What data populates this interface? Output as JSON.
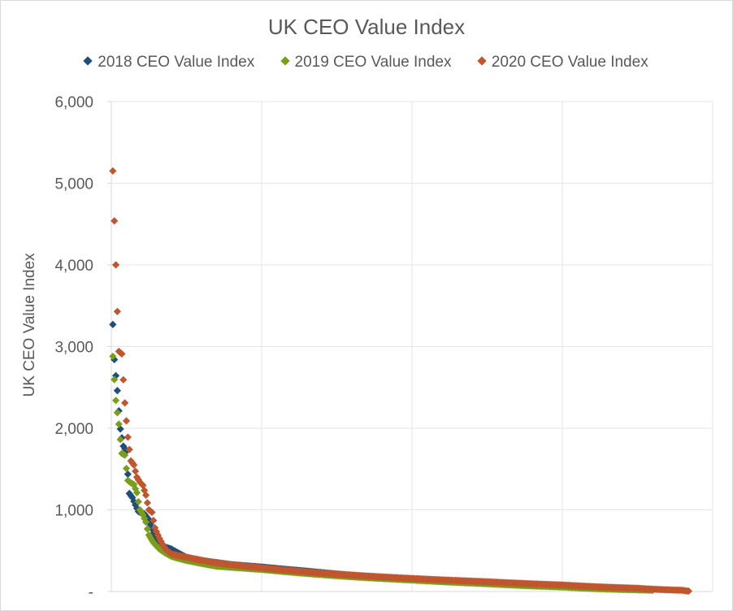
{
  "chart_data": {
    "type": "scatter",
    "title": "UK CEO Value Index",
    "xlabel": "",
    "ylabel": "UK CEO Value Index",
    "xlim": [
      0,
      400
    ],
    "ylim": [
      0,
      6000
    ],
    "x_gridlines": [
      100,
      200,
      300,
      400
    ],
    "grid": true,
    "legend_position": "top",
    "y_ticks": [
      {
        "value": 0,
        "label": "-"
      },
      {
        "value": 1000,
        "label": "1,000"
      },
      {
        "value": 2000,
        "label": "2,000"
      },
      {
        "value": 3000,
        "label": "3,000"
      },
      {
        "value": 4000,
        "label": "4,000"
      },
      {
        "value": 5000,
        "label": "5,000"
      },
      {
        "value": 6000,
        "label": "6,000"
      }
    ],
    "marker": "diamond",
    "series": [
      {
        "name": "2018 CEO Value Index",
        "color": "#1f4e79",
        "anchors": [
          [
            1,
            3270
          ],
          [
            2,
            2840
          ],
          [
            4,
            2460
          ],
          [
            6,
            1990
          ],
          [
            8,
            1780
          ],
          [
            10,
            1720
          ],
          [
            12,
            1200
          ],
          [
            14,
            1150
          ],
          [
            16,
            1060
          ],
          [
            18,
            980
          ],
          [
            20,
            960
          ],
          [
            22,
            950
          ],
          [
            25,
            880
          ],
          [
            30,
            620
          ],
          [
            35,
            550
          ],
          [
            40,
            520
          ],
          [
            50,
            420
          ],
          [
            60,
            380
          ],
          [
            80,
            330
          ],
          [
            100,
            300
          ],
          [
            130,
            250
          ],
          [
            160,
            200
          ],
          [
            200,
            155
          ],
          [
            250,
            110
          ],
          [
            300,
            75
          ],
          [
            350,
            35
          ],
          [
            360,
            20
          ]
        ],
        "n_points": 360
      },
      {
        "name": "2019 CEO Value Index",
        "color": "#7a9e1a",
        "anchors": [
          [
            1,
            2880
          ],
          [
            3,
            2340
          ],
          [
            5,
            2050
          ],
          [
            7,
            1690
          ],
          [
            9,
            1670
          ],
          [
            11,
            1360
          ],
          [
            13,
            1330
          ],
          [
            15,
            1310
          ],
          [
            17,
            1210
          ],
          [
            19,
            1000
          ],
          [
            21,
            940
          ],
          [
            23,
            850
          ],
          [
            25,
            690
          ],
          [
            28,
            600
          ],
          [
            32,
            520
          ],
          [
            36,
            470
          ],
          [
            40,
            430
          ],
          [
            50,
            380
          ],
          [
            70,
            310
          ],
          [
            100,
            270
          ],
          [
            130,
            220
          ],
          [
            160,
            180
          ],
          [
            200,
            140
          ],
          [
            250,
            95
          ],
          [
            300,
            55
          ],
          [
            350,
            20
          ],
          [
            360,
            15
          ]
        ],
        "n_points": 360
      },
      {
        "name": "2020 CEO Value Index",
        "color": "#c0562e",
        "anchors": [
          [
            1,
            5150
          ],
          [
            3,
            4000
          ],
          [
            5,
            2940
          ],
          [
            7,
            2910
          ],
          [
            9,
            2310
          ],
          [
            11,
            1890
          ],
          [
            13,
            1600
          ],
          [
            15,
            1550
          ],
          [
            17,
            1400
          ],
          [
            19,
            1340
          ],
          [
            21,
            1300
          ],
          [
            23,
            1180
          ],
          [
            25,
            1000
          ],
          [
            27,
            970
          ],
          [
            29,
            780
          ],
          [
            32,
            650
          ],
          [
            36,
            520
          ],
          [
            40,
            460
          ],
          [
            50,
            420
          ],
          [
            70,
            350
          ],
          [
            100,
            290
          ],
          [
            130,
            240
          ],
          [
            160,
            200
          ],
          [
            200,
            160
          ],
          [
            250,
            120
          ],
          [
            300,
            80
          ],
          [
            350,
            40
          ],
          [
            380,
            15
          ],
          [
            384,
            5
          ]
        ],
        "n_points": 384
      }
    ]
  }
}
